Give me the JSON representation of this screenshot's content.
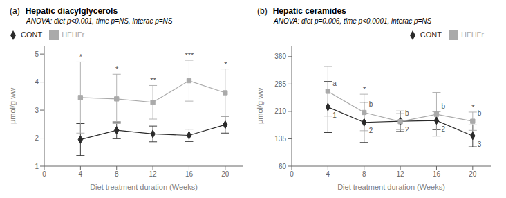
{
  "chart_data": [
    {
      "type": "line",
      "panel_label": "(a)",
      "title": "Hepatic diacylglycerols",
      "subtitle": "ANOVA: diet p<0.001, time p=NS, interac p=NS",
      "xlabel": "Diet treatment duration (Weeks)",
      "ylabel": "μmol/g ww",
      "x": [
        4,
        8,
        12,
        16,
        20
      ],
      "xlim": [
        0,
        22
      ],
      "xticks": [
        0,
        4,
        8,
        12,
        16,
        20
      ],
      "ylim": [
        1,
        5.3
      ],
      "yticks": [
        1,
        2,
        3,
        4,
        5
      ],
      "grid": false,
      "legend": "top left",
      "series": [
        {
          "name": "CONT",
          "color": "#2a2a2a",
          "marker": "diamond",
          "line_style": "solid",
          "values": [
            1.95,
            2.28,
            2.15,
            2.1,
            2.48
          ],
          "errors": [
            0.57,
            0.3,
            0.28,
            0.22,
            0.3
          ]
        },
        {
          "name": "HFHFr",
          "color": "#aaaaaa",
          "marker": "square",
          "line_style": "solid",
          "values": [
            3.45,
            3.4,
            3.28,
            4.05,
            3.62
          ],
          "errors": [
            1.27,
            0.88,
            0.6,
            0.73,
            0.85
          ]
        }
      ],
      "annotations": [
        {
          "x": 4,
          "text": "*"
        },
        {
          "x": 8,
          "text": "*"
        },
        {
          "x": 12,
          "text": "**"
        },
        {
          "x": 16,
          "text": "***"
        },
        {
          "x": 20,
          "text": "*"
        }
      ]
    },
    {
      "type": "line",
      "panel_label": "(b)",
      "title": "Hepatic ceramides",
      "subtitle": "ANOVA: diet p=0.006, time p<0.0001, interac p=NS",
      "xlabel": "Diet treatment duration (Weeks)",
      "ylabel": "μmol/g ww",
      "x": [
        4,
        8,
        12,
        16,
        20
      ],
      "xlim": [
        0,
        22
      ],
      "xticks": [
        0,
        4,
        8,
        12,
        16,
        20
      ],
      "ylim": [
        60,
        390
      ],
      "yticks": [
        60,
        135,
        210,
        285,
        360
      ],
      "grid": false,
      "legend": "top right",
      "series": [
        {
          "name": "CONT",
          "color": "#2a2a2a",
          "marker": "diamond",
          "line_style": "solid",
          "values": [
            222,
            180,
            183,
            185,
            143
          ],
          "errors": [
            70,
            55,
            28,
            25,
            30
          ]
        },
        {
          "name": "HFHFr",
          "color": "#aaaaaa",
          "marker": "square",
          "line_style": "solid",
          "values": [
            265,
            207,
            182,
            202,
            183
          ],
          "errors": [
            68,
            50,
            22,
            60,
            25
          ]
        }
      ],
      "annotations": [
        {
          "x": 8,
          "text": "*"
        },
        {
          "x": 20,
          "text": "*"
        },
        {
          "x": 4,
          "series": "CONT",
          "text": "1"
        },
        {
          "x": 8,
          "series": "CONT",
          "text": "2"
        },
        {
          "x": 12,
          "series": "CONT",
          "text": "2"
        },
        {
          "x": 16,
          "series": "CONT",
          "text": "2"
        },
        {
          "x": 20,
          "series": "CONT",
          "text": "3"
        },
        {
          "x": 4,
          "series": "HFHFr",
          "text": "a"
        },
        {
          "x": 8,
          "series": "HFHFr",
          "text": "b"
        },
        {
          "x": 12,
          "series": "HFHFr",
          "text": "b"
        },
        {
          "x": 16,
          "series": "HFHFr",
          "text": "b"
        },
        {
          "x": 20,
          "series": "HFHFr",
          "text": "b"
        }
      ]
    }
  ]
}
